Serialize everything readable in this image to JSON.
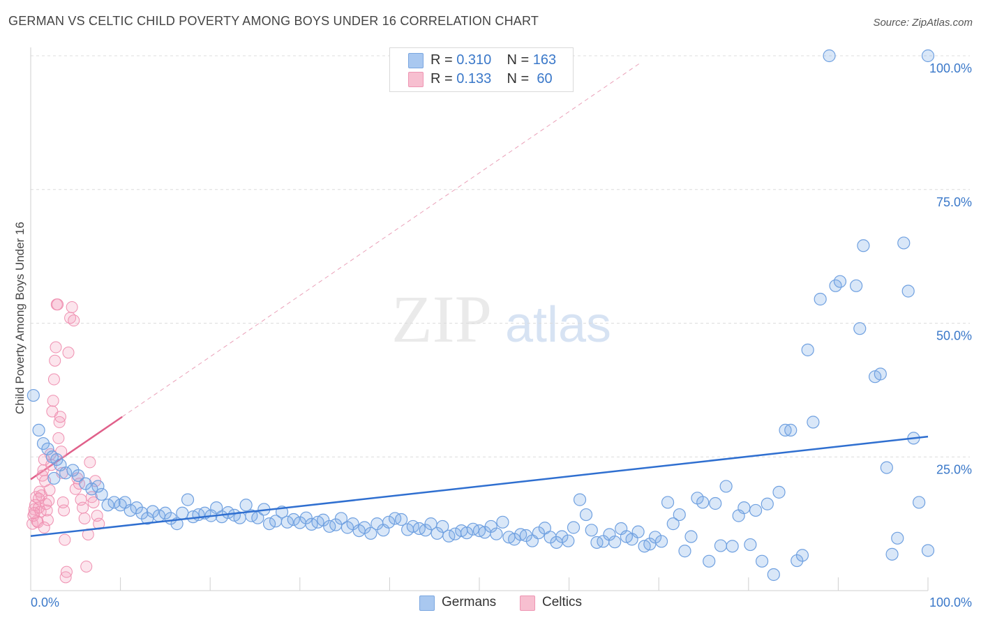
{
  "header": {
    "title": "GERMAN VS CELTIC CHILD POVERTY AMONG BOYS UNDER 16 CORRELATION CHART",
    "source": "Source: ZipAtlas.com"
  },
  "watermark": {
    "zip": "ZIP",
    "atlas": "atlas"
  },
  "legend": {
    "rows": [
      {
        "r_label": "R =",
        "r_value": "0.310",
        "n_label": "N =",
        "n_value": "163",
        "color": "#a9c8f0",
        "border": "#7aa6e0"
      },
      {
        "r_label": "R =",
        "r_value": "0.133",
        "n_label": "N =",
        "n_value": " 60",
        "color": "#f7bfd0",
        "border": "#ee95b3"
      }
    ]
  },
  "bottom_legend": {
    "germans": "Germans",
    "celtics": "Celtics"
  },
  "colors": {
    "german_fill": "rgba(120,168,230,0.28)",
    "german_stroke": "#6fa0e0",
    "german_line": "#2f6fd0",
    "celtic_fill": "rgba(245,160,190,0.28)",
    "celtic_stroke": "#ef8fb0",
    "celtic_line": "#e0608a",
    "axis_label": "#3a78c9",
    "grid": "#dcdcdc"
  },
  "chart_data": {
    "type": "scatter",
    "title": "GERMAN VS CELTIC CHILD POVERTY AMONG BOYS UNDER 16 CORRELATION CHART",
    "xlabel": "",
    "ylabel": "Child Poverty Among Boys Under 16",
    "xlim": [
      0,
      100
    ],
    "ylim": [
      0,
      100
    ],
    "x_tick_labels": [
      "0.0%",
      "100.0%"
    ],
    "y_tick_labels": [
      "25.0%",
      "50.0%",
      "75.0%",
      "100.0%"
    ],
    "y_ticks": [
      25,
      50,
      75,
      100
    ],
    "grid": true,
    "legend_position": "top-center",
    "series": [
      {
        "name": "Germans",
        "stats": {
          "R": 0.31,
          "N": 163
        },
        "trend": {
          "x": [
            0,
            100
          ],
          "y": [
            10.2,
            28.8
          ],
          "style": "solid"
        },
        "points": [
          [
            0.3,
            36.5
          ],
          [
            0.9,
            30.0
          ],
          [
            1.4,
            27.5
          ],
          [
            1.9,
            26.5
          ],
          [
            2.4,
            25.0
          ],
          [
            2.9,
            24.5
          ],
          [
            3.3,
            23.5
          ],
          [
            3.9,
            22.0
          ],
          [
            4.7,
            22.5
          ],
          [
            5.3,
            21.5
          ],
          [
            2.6,
            21.0
          ],
          [
            6.1,
            20.0
          ],
          [
            6.8,
            19.0
          ],
          [
            7.5,
            19.5
          ],
          [
            7.9,
            18.0
          ],
          [
            8.6,
            16.0
          ],
          [
            9.3,
            16.5
          ],
          [
            10.0,
            16.0
          ],
          [
            10.5,
            16.5
          ],
          [
            11.1,
            15.0
          ],
          [
            11.8,
            15.5
          ],
          [
            12.4,
            14.5
          ],
          [
            13.0,
            13.5
          ],
          [
            13.6,
            14.8
          ],
          [
            14.3,
            14.0
          ],
          [
            15.0,
            14.5
          ],
          [
            15.6,
            13.5
          ],
          [
            16.3,
            12.5
          ],
          [
            16.9,
            14.5
          ],
          [
            17.5,
            17.0
          ],
          [
            18.1,
            13.8
          ],
          [
            18.7,
            14.2
          ],
          [
            19.4,
            14.5
          ],
          [
            20.1,
            14.0
          ],
          [
            20.7,
            15.5
          ],
          [
            21.3,
            13.8
          ],
          [
            22.0,
            14.6
          ],
          [
            22.7,
            14.1
          ],
          [
            23.3,
            13.6
          ],
          [
            24.0,
            16.0
          ],
          [
            24.6,
            14.0
          ],
          [
            25.3,
            13.6
          ],
          [
            26.0,
            15.2
          ],
          [
            26.6,
            12.5
          ],
          [
            27.3,
            13.0
          ],
          [
            28.0,
            14.7
          ],
          [
            28.6,
            12.8
          ],
          [
            29.3,
            13.3
          ],
          [
            30.0,
            12.7
          ],
          [
            30.7,
            13.6
          ],
          [
            31.3,
            12.4
          ],
          [
            32.0,
            12.8
          ],
          [
            32.6,
            13.2
          ],
          [
            33.3,
            12.0
          ],
          [
            34.0,
            12.3
          ],
          [
            34.6,
            13.5
          ],
          [
            35.3,
            11.8
          ],
          [
            35.9,
            12.5
          ],
          [
            36.6,
            11.2
          ],
          [
            37.2,
            11.8
          ],
          [
            37.9,
            10.7
          ],
          [
            38.6,
            12.5
          ],
          [
            39.3,
            11.3
          ],
          [
            39.9,
            12.8
          ],
          [
            40.6,
            13.5
          ],
          [
            41.3,
            13.3
          ],
          [
            42.0,
            11.4
          ],
          [
            42.6,
            12.0
          ],
          [
            43.3,
            11.6
          ],
          [
            44.0,
            11.3
          ],
          [
            44.6,
            12.5
          ],
          [
            45.3,
            10.7
          ],
          [
            45.9,
            12.0
          ],
          [
            46.6,
            10.2
          ],
          [
            47.3,
            10.6
          ],
          [
            48.0,
            11.2
          ],
          [
            48.6,
            10.8
          ],
          [
            49.3,
            11.5
          ],
          [
            50.0,
            11.2
          ],
          [
            50.6,
            10.9
          ],
          [
            51.3,
            12.0
          ],
          [
            51.9,
            10.6
          ],
          [
            52.6,
            12.8
          ],
          [
            53.3,
            10.0
          ],
          [
            53.9,
            9.6
          ],
          [
            54.6,
            10.5
          ],
          [
            55.2,
            10.3
          ],
          [
            55.9,
            9.3
          ],
          [
            56.6,
            10.8
          ],
          [
            57.3,
            11.7
          ],
          [
            57.9,
            10.0
          ],
          [
            58.6,
            9.0
          ],
          [
            59.2,
            10.1
          ],
          [
            59.9,
            9.3
          ],
          [
            60.5,
            11.8
          ],
          [
            61.2,
            17.0
          ],
          [
            61.9,
            14.2
          ],
          [
            62.5,
            11.3
          ],
          [
            63.1,
            9.0
          ],
          [
            63.8,
            9.2
          ],
          [
            64.5,
            10.5
          ],
          [
            65.1,
            9.1
          ],
          [
            65.8,
            11.6
          ],
          [
            66.4,
            10.1
          ],
          [
            67.0,
            9.6
          ],
          [
            67.7,
            11.0
          ],
          [
            68.4,
            8.3
          ],
          [
            69.0,
            8.7
          ],
          [
            69.6,
            10.0
          ],
          [
            70.3,
            9.2
          ],
          [
            71.0,
            16.5
          ],
          [
            71.6,
            12.5
          ],
          [
            72.3,
            14.2
          ],
          [
            72.9,
            7.4
          ],
          [
            73.6,
            10.1
          ],
          [
            74.3,
            17.3
          ],
          [
            74.9,
            16.5
          ],
          [
            75.6,
            5.5
          ],
          [
            76.3,
            16.3
          ],
          [
            76.9,
            8.4
          ],
          [
            77.5,
            19.5
          ],
          [
            78.2,
            8.3
          ],
          [
            78.9,
            14.0
          ],
          [
            79.5,
            15.5
          ],
          [
            80.2,
            8.6
          ],
          [
            80.8,
            15.0
          ],
          [
            81.5,
            5.5
          ],
          [
            82.1,
            16.2
          ],
          [
            82.8,
            3.0
          ],
          [
            83.4,
            18.4
          ],
          [
            84.1,
            30.0
          ],
          [
            84.7,
            30.0
          ],
          [
            85.4,
            5.6
          ],
          [
            86.0,
            6.6
          ],
          [
            86.6,
            45.0
          ],
          [
            87.2,
            31.5
          ],
          [
            88.0,
            54.5
          ],
          [
            89.7,
            57.0
          ],
          [
            90.2,
            57.8
          ],
          [
            92.0,
            57.0
          ],
          [
            92.4,
            49.0
          ],
          [
            92.8,
            64.5
          ],
          [
            94.1,
            40.0
          ],
          [
            94.7,
            40.5
          ],
          [
            95.4,
            23.0
          ],
          [
            96.0,
            6.8
          ],
          [
            96.6,
            9.8
          ],
          [
            97.3,
            65.0
          ],
          [
            97.8,
            56.0
          ],
          [
            98.4,
            28.5
          ],
          [
            99.0,
            16.5
          ],
          [
            100.0,
            7.5
          ],
          [
            89.0,
            100.0
          ],
          [
            100.0,
            100.0
          ]
        ]
      },
      {
        "name": "Celtics",
        "stats": {
          "R": 0.133,
          "N": 60
        },
        "trend": {
          "x": [
            0,
            10.2
          ],
          "y": [
            20.8,
            32.5
          ],
          "style": "solid"
        },
        "trend_extension": {
          "x": [
            10.2,
            67.8
          ],
          "y": [
            32.5,
            98.5
          ],
          "style": "dashed"
        },
        "points": [
          [
            0.2,
            12.5
          ],
          [
            0.3,
            14.0
          ],
          [
            0.4,
            15.2
          ],
          [
            0.5,
            16.0
          ],
          [
            0.6,
            17.5
          ],
          [
            0.7,
            13.0
          ],
          [
            0.8,
            12.8
          ],
          [
            0.9,
            15.5
          ],
          [
            1.0,
            18.5
          ],
          [
            1.1,
            14.8
          ],
          [
            1.2,
            17.8
          ],
          [
            1.3,
            21.5
          ],
          [
            1.4,
            22.5
          ],
          [
            1.5,
            24.5
          ],
          [
            1.6,
            20.5
          ],
          [
            1.7,
            16.2
          ],
          [
            1.8,
            15.0
          ],
          [
            1.9,
            13.2
          ],
          [
            2.0,
            16.8
          ],
          [
            2.1,
            18.8
          ],
          [
            2.2,
            25.5
          ],
          [
            2.3,
            23.5
          ],
          [
            2.4,
            33.5
          ],
          [
            2.5,
            35.5
          ],
          [
            2.6,
            39.5
          ],
          [
            2.7,
            43.0
          ],
          [
            2.8,
            45.5
          ],
          [
            2.9,
            53.5
          ],
          [
            3.0,
            53.5
          ],
          [
            3.1,
            28.5
          ],
          [
            3.2,
            31.5
          ],
          [
            3.3,
            32.5
          ],
          [
            3.4,
            26.0
          ],
          [
            3.5,
            22.0
          ],
          [
            3.6,
            16.5
          ],
          [
            3.7,
            15.0
          ],
          [
            3.8,
            9.5
          ],
          [
            3.9,
            2.5
          ],
          [
            4.0,
            3.5
          ],
          [
            4.2,
            44.5
          ],
          [
            4.4,
            51.0
          ],
          [
            4.6,
            53.0
          ],
          [
            4.8,
            50.5
          ],
          [
            5.0,
            19.0
          ],
          [
            5.2,
            21.0
          ],
          [
            5.4,
            20.0
          ],
          [
            5.6,
            17.0
          ],
          [
            5.8,
            15.5
          ],
          [
            6.0,
            13.5
          ],
          [
            6.2,
            4.5
          ],
          [
            6.4,
            10.5
          ],
          [
            6.6,
            24.0
          ],
          [
            6.8,
            17.5
          ],
          [
            7.0,
            16.5
          ],
          [
            7.2,
            20.5
          ],
          [
            7.4,
            14.0
          ],
          [
            7.6,
            12.5
          ],
          [
            0.4,
            14.5
          ],
          [
            0.9,
            17.2
          ],
          [
            1.5,
            11.8
          ]
        ]
      }
    ]
  }
}
